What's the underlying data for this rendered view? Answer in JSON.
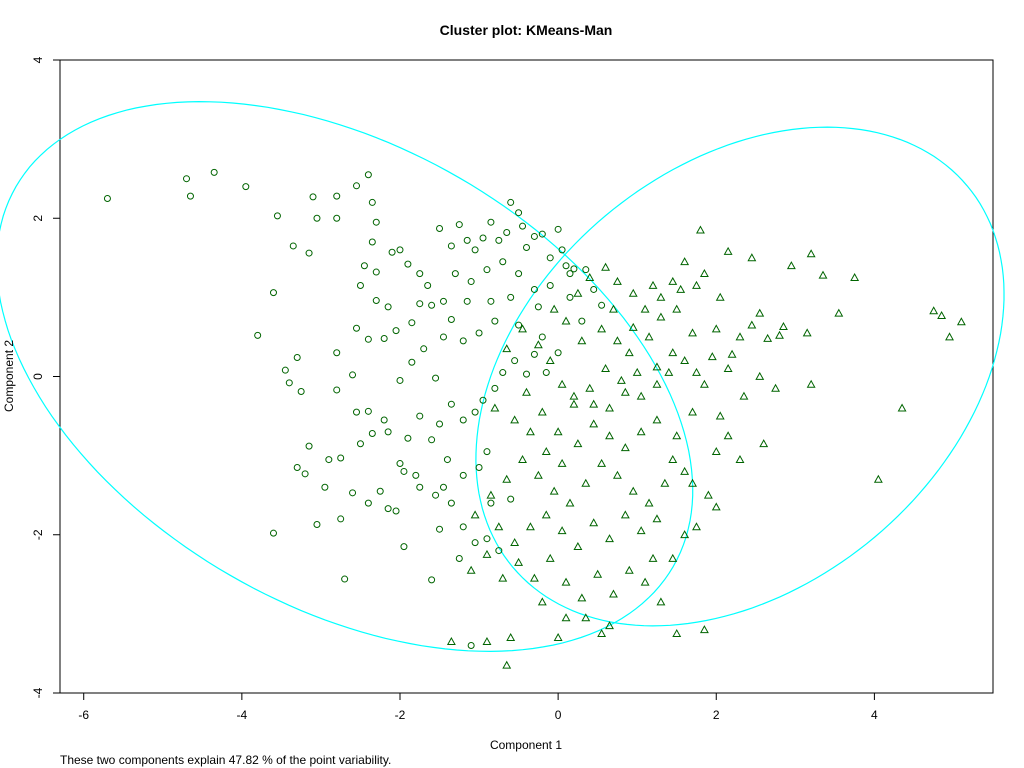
{
  "chart_data": {
    "type": "scatter",
    "title": "Cluster plot: KMeans-Man",
    "xlabel": "Component 1",
    "ylabel": "Component 2",
    "subtitle": "These two components explain 47.82 % of the point variability.",
    "xlim": [
      -6.3,
      5.5
    ],
    "ylim": [
      -4.0,
      4.0
    ],
    "xticks": [
      -6,
      -4,
      -2,
      0,
      2,
      4
    ],
    "yticks": [
      -4,
      -2,
      0,
      2,
      4
    ],
    "grid": false,
    "colors": {
      "points": "#006400",
      "ellipse": "#00FFFF",
      "axis": "#000000"
    },
    "series": [
      {
        "marker": "circle",
        "points": [
          [
            -5.7,
            2.25
          ],
          [
            -4.7,
            2.5
          ],
          [
            -4.65,
            2.28
          ],
          [
            -4.35,
            2.58
          ],
          [
            -3.95,
            2.4
          ],
          [
            -3.55,
            2.03
          ],
          [
            -3.8,
            0.52
          ],
          [
            -3.6,
            1.06
          ],
          [
            -3.35,
            1.65
          ],
          [
            -3.15,
            1.56
          ],
          [
            -3.1,
            2.27
          ],
          [
            -3.05,
            2.0
          ],
          [
            -2.8,
            2.28
          ],
          [
            -2.8,
            2.0
          ],
          [
            -2.55,
            2.41
          ],
          [
            -2.4,
            2.55
          ],
          [
            -2.35,
            2.2
          ],
          [
            -2.3,
            1.95
          ],
          [
            -2.35,
            1.7
          ],
          [
            -2.45,
            1.4
          ],
          [
            -2.5,
            1.15
          ],
          [
            -2.3,
            1.32
          ],
          [
            -2.1,
            1.57
          ],
          [
            -2.0,
            1.6
          ],
          [
            -1.9,
            1.42
          ],
          [
            -1.75,
            1.3
          ],
          [
            -1.65,
            1.15
          ],
          [
            -1.5,
            1.87
          ],
          [
            -1.35,
            1.65
          ],
          [
            -1.25,
            1.92
          ],
          [
            -1.15,
            1.72
          ],
          [
            -1.05,
            1.6
          ],
          [
            -0.95,
            1.75
          ],
          [
            -0.85,
            1.95
          ],
          [
            -0.75,
            1.72
          ],
          [
            -0.65,
            1.82
          ],
          [
            -0.6,
            2.2
          ],
          [
            -0.5,
            2.07
          ],
          [
            -0.45,
            1.9
          ],
          [
            -0.4,
            1.63
          ],
          [
            -0.3,
            1.77
          ],
          [
            -0.2,
            1.8
          ],
          [
            -0.1,
            1.5
          ],
          [
            0.0,
            1.86
          ],
          [
            0.05,
            1.6
          ],
          [
            0.1,
            1.4
          ],
          [
            0.15,
            1.3
          ],
          [
            0.2,
            1.36
          ],
          [
            -0.5,
            1.3
          ],
          [
            -0.7,
            1.45
          ],
          [
            -0.9,
            1.35
          ],
          [
            -1.1,
            1.2
          ],
          [
            -1.3,
            1.3
          ],
          [
            -1.45,
            0.95
          ],
          [
            -1.6,
            0.9
          ],
          [
            -1.75,
            0.92
          ],
          [
            -1.85,
            0.68
          ],
          [
            -2.05,
            0.58
          ],
          [
            -2.2,
            0.48
          ],
          [
            -2.4,
            0.47
          ],
          [
            -2.55,
            0.61
          ],
          [
            -2.15,
            0.88
          ],
          [
            -2.3,
            0.96
          ],
          [
            -2.8,
            0.3
          ],
          [
            -3.3,
            0.24
          ],
          [
            -3.45,
            0.08
          ],
          [
            -3.4,
            -0.08
          ],
          [
            -3.25,
            -0.19
          ],
          [
            -2.8,
            -0.17
          ],
          [
            -2.55,
            -0.45
          ],
          [
            -2.6,
            0.02
          ],
          [
            -2.4,
            -0.44
          ],
          [
            -2.2,
            -0.55
          ],
          [
            -2.15,
            -0.7
          ],
          [
            -2.35,
            -0.72
          ],
          [
            -2.5,
            -0.85
          ],
          [
            -2.75,
            -1.03
          ],
          [
            -2.9,
            -1.05
          ],
          [
            -3.15,
            -0.88
          ],
          [
            -3.3,
            -1.15
          ],
          [
            -3.2,
            -1.23
          ],
          [
            -2.95,
            -1.4
          ],
          [
            -2.6,
            -1.47
          ],
          [
            -2.25,
            -1.45
          ],
          [
            -2.0,
            -1.1
          ],
          [
            -1.95,
            -1.2
          ],
          [
            -1.75,
            -1.4
          ],
          [
            -1.55,
            -1.5
          ],
          [
            -1.45,
            -1.4
          ],
          [
            -1.35,
            -1.6
          ],
          [
            -1.2,
            -1.9
          ],
          [
            -1.05,
            -2.1
          ],
          [
            -0.9,
            -2.05
          ],
          [
            -0.75,
            -2.2
          ],
          [
            -0.85,
            -1.6
          ],
          [
            -0.6,
            -1.55
          ],
          [
            -2.05,
            -1.7
          ],
          [
            -2.15,
            -1.67
          ],
          [
            -2.4,
            -1.6
          ],
          [
            -2.75,
            -1.8
          ],
          [
            -3.05,
            -1.87
          ],
          [
            -3.6,
            -1.98
          ],
          [
            -2.7,
            -2.56
          ],
          [
            -1.95,
            -2.15
          ],
          [
            -1.6,
            -2.57
          ],
          [
            -1.5,
            -1.93
          ],
          [
            -1.25,
            -2.3
          ],
          [
            -1.1,
            -3.4
          ],
          [
            -1.9,
            -0.78
          ],
          [
            -1.75,
            -0.5
          ],
          [
            -1.5,
            -0.6
          ],
          [
            -1.35,
            -0.35
          ],
          [
            -1.2,
            -0.55
          ],
          [
            -1.05,
            -0.45
          ],
          [
            -0.95,
            -0.3
          ],
          [
            -0.8,
            -0.15
          ],
          [
            -0.7,
            0.05
          ],
          [
            -0.55,
            0.2
          ],
          [
            -0.4,
            0.03
          ],
          [
            -0.3,
            0.28
          ],
          [
            -0.15,
            0.05
          ],
          [
            0.0,
            0.3
          ],
          [
            -0.2,
            0.5
          ],
          [
            -0.5,
            0.65
          ],
          [
            -0.8,
            0.7
          ],
          [
            -1.0,
            0.55
          ],
          [
            -1.2,
            0.45
          ],
          [
            -1.45,
            0.5
          ],
          [
            -1.7,
            0.35
          ],
          [
            -1.85,
            0.18
          ],
          [
            -2.0,
            -0.05
          ],
          [
            -1.55,
            -0.02
          ],
          [
            -0.9,
            -0.95
          ],
          [
            -1.0,
            -1.15
          ],
          [
            -1.2,
            -1.25
          ],
          [
            -1.4,
            -1.05
          ],
          [
            -1.6,
            -0.8
          ],
          [
            -1.8,
            -1.25
          ],
          [
            -0.3,
            1.1
          ],
          [
            -0.6,
            1.0
          ],
          [
            -0.85,
            0.95
          ],
          [
            -1.15,
            0.95
          ],
          [
            -1.35,
            0.72
          ],
          [
            -0.25,
            0.88
          ],
          [
            0.15,
            1.0
          ],
          [
            0.3,
            0.7
          ],
          [
            0.45,
            1.1
          ],
          [
            0.55,
            0.9
          ],
          [
            -0.1,
            1.15
          ],
          [
            0.35,
            1.35
          ]
        ]
      },
      {
        "marker": "triangle",
        "points": [
          [
            1.8,
            1.85
          ],
          [
            2.15,
            1.58
          ],
          [
            2.45,
            1.5
          ],
          [
            2.95,
            1.4
          ],
          [
            3.2,
            1.55
          ],
          [
            3.35,
            1.28
          ],
          [
            3.75,
            1.25
          ],
          [
            3.55,
            0.8
          ],
          [
            4.75,
            0.83
          ],
          [
            4.85,
            0.77
          ],
          [
            5.1,
            0.69
          ],
          [
            4.95,
            0.5
          ],
          [
            4.35,
            -0.4
          ],
          [
            4.05,
            -1.3
          ],
          [
            3.2,
            -0.1
          ],
          [
            3.15,
            0.55
          ],
          [
            2.85,
            0.63
          ],
          [
            2.8,
            0.52
          ],
          [
            2.65,
            0.48
          ],
          [
            2.55,
            0.8
          ],
          [
            2.45,
            0.65
          ],
          [
            2.3,
            0.5
          ],
          [
            2.2,
            0.28
          ],
          [
            2.15,
            0.1
          ],
          [
            2.05,
            -0.5
          ],
          [
            2.15,
            -0.75
          ],
          [
            2.35,
            -0.25
          ],
          [
            2.55,
            0.0
          ],
          [
            2.75,
            -0.15
          ],
          [
            2.6,
            -0.85
          ],
          [
            2.3,
            -1.05
          ],
          [
            2.0,
            -0.95
          ],
          [
            1.9,
            -1.5
          ],
          [
            2.0,
            -1.65
          ],
          [
            1.75,
            -1.9
          ],
          [
            1.6,
            -1.2
          ],
          [
            1.5,
            -0.75
          ],
          [
            1.7,
            -0.45
          ],
          [
            1.85,
            -0.1
          ],
          [
            1.95,
            0.25
          ],
          [
            2.0,
            0.6
          ],
          [
            2.05,
            1.0
          ],
          [
            1.85,
            1.3
          ],
          [
            1.6,
            1.45
          ],
          [
            1.45,
            1.2
          ],
          [
            1.2,
            1.15
          ],
          [
            0.95,
            1.05
          ],
          [
            0.75,
            1.2
          ],
          [
            0.6,
            1.38
          ],
          [
            0.4,
            1.25
          ],
          [
            0.25,
            1.05
          ],
          [
            0.55,
            0.6
          ],
          [
            0.75,
            0.45
          ],
          [
            0.95,
            0.62
          ],
          [
            1.15,
            0.5
          ],
          [
            1.3,
            0.75
          ],
          [
            1.5,
            0.85
          ],
          [
            1.7,
            0.55
          ],
          [
            1.45,
            0.3
          ],
          [
            1.25,
            0.12
          ],
          [
            1.0,
            0.05
          ],
          [
            0.8,
            -0.05
          ],
          [
            0.6,
            0.1
          ],
          [
            0.4,
            -0.15
          ],
          [
            0.2,
            -0.35
          ],
          [
            0.05,
            -0.1
          ],
          [
            -0.1,
            0.2
          ],
          [
            -0.25,
            0.4
          ],
          [
            -0.45,
            0.6
          ],
          [
            -0.65,
            0.35
          ],
          [
            -0.8,
            -0.4
          ],
          [
            -0.55,
            -0.55
          ],
          [
            -0.35,
            -0.7
          ],
          [
            -0.15,
            -0.95
          ],
          [
            0.05,
            -1.1
          ],
          [
            0.25,
            -0.85
          ],
          [
            0.45,
            -0.6
          ],
          [
            0.65,
            -0.75
          ],
          [
            0.85,
            -0.9
          ],
          [
            1.05,
            -0.7
          ],
          [
            1.25,
            -0.55
          ],
          [
            1.45,
            -1.05
          ],
          [
            1.35,
            -1.35
          ],
          [
            1.15,
            -1.6
          ],
          [
            0.95,
            -1.45
          ],
          [
            0.75,
            -1.25
          ],
          [
            0.55,
            -1.1
          ],
          [
            0.35,
            -1.35
          ],
          [
            0.15,
            -1.6
          ],
          [
            -0.05,
            -1.45
          ],
          [
            -0.25,
            -1.25
          ],
          [
            -0.45,
            -1.05
          ],
          [
            -0.65,
            -1.3
          ],
          [
            -0.85,
            -1.5
          ],
          [
            -1.05,
            -1.75
          ],
          [
            -0.75,
            -1.9
          ],
          [
            -0.55,
            -2.1
          ],
          [
            -0.35,
            -1.9
          ],
          [
            -0.15,
            -1.75
          ],
          [
            0.05,
            -1.95
          ],
          [
            0.25,
            -2.15
          ],
          [
            0.45,
            -1.85
          ],
          [
            0.65,
            -2.05
          ],
          [
            0.85,
            -1.75
          ],
          [
            1.05,
            -1.95
          ],
          [
            1.25,
            -1.8
          ],
          [
            1.45,
            -2.3
          ],
          [
            1.3,
            -2.85
          ],
          [
            1.1,
            -2.6
          ],
          [
            0.9,
            -2.45
          ],
          [
            0.7,
            -2.75
          ],
          [
            0.5,
            -2.5
          ],
          [
            0.3,
            -2.8
          ],
          [
            0.1,
            -2.6
          ],
          [
            -0.1,
            -2.3
          ],
          [
            -0.3,
            -2.55
          ],
          [
            -0.5,
            -2.35
          ],
          [
            -0.7,
            -2.55
          ],
          [
            -0.9,
            -2.25
          ],
          [
            -1.1,
            -2.45
          ],
          [
            -0.2,
            -2.85
          ],
          [
            0.1,
            -3.05
          ],
          [
            0.35,
            -3.05
          ],
          [
            0.55,
            -3.25
          ],
          [
            0.0,
            -3.3
          ],
          [
            -0.6,
            -3.3
          ],
          [
            -0.9,
            -3.35
          ],
          [
            -1.35,
            -3.35
          ],
          [
            -0.65,
            -3.65
          ],
          [
            0.65,
            -3.15
          ],
          [
            1.5,
            -3.25
          ],
          [
            1.85,
            -3.2
          ],
          [
            1.2,
            -2.3
          ],
          [
            1.6,
            -2.0
          ],
          [
            1.7,
            -1.35
          ],
          [
            0.3,
            0.45
          ],
          [
            0.1,
            0.7
          ],
          [
            -0.05,
            0.85
          ],
          [
            0.7,
            0.85
          ],
          [
            0.9,
            0.3
          ],
          [
            1.1,
            0.85
          ],
          [
            1.3,
            1.0
          ],
          [
            1.55,
            1.1
          ],
          [
            1.75,
            1.15
          ],
          [
            -0.4,
            -0.2
          ],
          [
            -0.2,
            -0.45
          ],
          [
            0.0,
            -0.7
          ],
          [
            0.2,
            -0.25
          ],
          [
            0.45,
            -0.35
          ],
          [
            0.65,
            -0.4
          ],
          [
            0.85,
            -0.2
          ],
          [
            1.05,
            -0.25
          ],
          [
            1.25,
            -0.1
          ],
          [
            1.4,
            0.05
          ],
          [
            1.6,
            0.2
          ],
          [
            1.75,
            0.05
          ]
        ]
      }
    ],
    "ellipses": [
      {
        "cx": -2.7,
        "cy": 0.0,
        "a": 4.8,
        "b": 2.9,
        "angle_deg": -30
      },
      {
        "cx": 2.3,
        "cy": 0.0,
        "a": 3.75,
        "b": 2.65,
        "angle_deg": 40
      }
    ]
  }
}
